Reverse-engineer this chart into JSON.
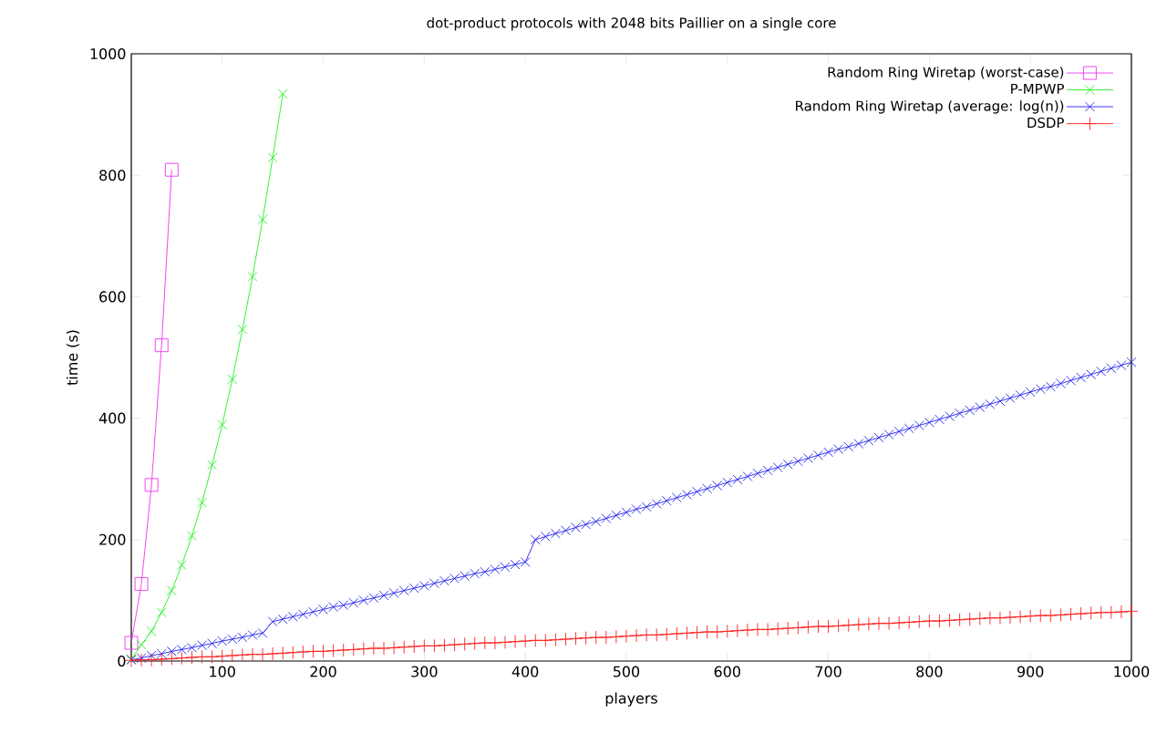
{
  "chart_data": {
    "type": "line",
    "title": "dot-product protocols with 2048 bits Paillier on a single core",
    "xlabel": "players",
    "ylabel": "time (s)",
    "xlim": [
      10,
      1000
    ],
    "xticks": [
      100,
      200,
      300,
      400,
      500,
      600,
      700,
      800,
      900,
      1000
    ],
    "ylim": [
      0,
      1000
    ],
    "yticks": [
      0,
      200,
      400,
      600,
      800,
      1000
    ],
    "legend": "top right",
    "x": [
      10,
      20,
      30,
      40,
      50,
      60,
      70,
      80,
      90,
      100,
      110,
      120,
      130,
      140,
      150,
      160,
      170,
      180,
      190,
      200,
      210,
      220,
      230,
      240,
      250,
      260,
      270,
      280,
      290,
      300,
      310,
      320,
      330,
      340,
      350,
      360,
      370,
      380,
      390,
      400,
      410,
      420,
      430,
      440,
      450,
      460,
      470,
      480,
      490,
      500,
      510,
      520,
      530,
      540,
      550,
      560,
      570,
      580,
      590,
      600,
      610,
      620,
      630,
      640,
      650,
      660,
      670,
      680,
      690,
      700,
      710,
      720,
      730,
      740,
      750,
      760,
      770,
      780,
      790,
      800,
      810,
      820,
      830,
      840,
      850,
      860,
      870,
      880,
      890,
      900,
      910,
      920,
      930,
      940,
      950,
      960,
      970,
      980,
      990,
      1000
    ],
    "series": [
      {
        "name": "Random Ring Wiretap (worst-case)",
        "color": "#ee33ee",
        "marker": "square",
        "x": [
          10,
          20,
          30,
          40,
          50
        ],
        "values": [
          30,
          127,
          290,
          520,
          809
        ]
      },
      {
        "name": "P-MPWP",
        "color": "#22ee22",
        "marker": "cross",
        "x": [
          10,
          20,
          30,
          40,
          50,
          60,
          70,
          80,
          90,
          100,
          110,
          120,
          130,
          140,
          150,
          160
        ],
        "values": [
          3,
          27,
          49,
          80,
          116,
          158,
          206,
          261,
          323,
          389,
          464,
          546,
          633,
          727,
          829,
          934
        ]
      },
      {
        "name": "Random Ring Wiretap (average: log(n))",
        "color": "#2020ee",
        "marker": "cross",
        "values": [
          2,
          5,
          9,
          12,
          16,
          19,
          22,
          26,
          29,
          33,
          36,
          39,
          43,
          46,
          65,
          69,
          73,
          77,
          81,
          85,
          89,
          92,
          96,
          100,
          104,
          108,
          112,
          116,
          120,
          124,
          128,
          132,
          136,
          140,
          144,
          147,
          151,
          155,
          159,
          163,
          200,
          205,
          210,
          215,
          220,
          225,
          230,
          235,
          240,
          245,
          250,
          254,
          259,
          264,
          269,
          274,
          279,
          284,
          289,
          294,
          299,
          304,
          309,
          314,
          319,
          324,
          329,
          334,
          339,
          344,
          349,
          353,
          358,
          363,
          368,
          373,
          378,
          383,
          388,
          393,
          398,
          403,
          408,
          413,
          418,
          423,
          428,
          433,
          438,
          443,
          448,
          452,
          457,
          462,
          467,
          472,
          477,
          482,
          487,
          492
        ]
      },
      {
        "name": "DSDP",
        "color": "#ff2020",
        "marker": "plus",
        "values": [
          1,
          2,
          2,
          3,
          4,
          5,
          6,
          7,
          7,
          8,
          9,
          10,
          11,
          11,
          12,
          13,
          14,
          15,
          16,
          16,
          17,
          18,
          19,
          20,
          21,
          21,
          22,
          23,
          24,
          25,
          25,
          26,
          27,
          28,
          29,
          30,
          30,
          31,
          32,
          33,
          34,
          34,
          35,
          36,
          37,
          38,
          39,
          39,
          40,
          41,
          42,
          43,
          43,
          44,
          45,
          46,
          47,
          48,
          48,
          49,
          50,
          51,
          52,
          52,
          53,
          54,
          55,
          56,
          57,
          57,
          58,
          59,
          60,
          61,
          62,
          62,
          63,
          64,
          65,
          66,
          66,
          67,
          68,
          69,
          70,
          71,
          71,
          72,
          73,
          74,
          75,
          75,
          76,
          77,
          78,
          79,
          80,
          80,
          81,
          82
        ]
      }
    ]
  }
}
